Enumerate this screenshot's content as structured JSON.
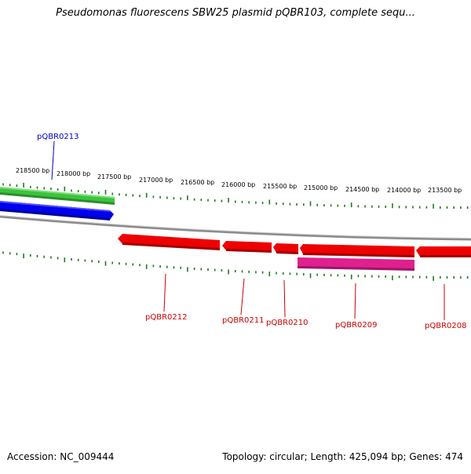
{
  "header": {
    "title": "Pseudomonas fluorescens SBW25 plasmid pQBR103, complete sequ..."
  },
  "footer": {
    "accession": "Accession: NC_009444",
    "summary": "Topology: circular; Length: 425,094 bp; Genes: 474"
  },
  "scale": {
    "tick_labels": [
      "218500 bp",
      "218000 bp",
      "217500 bp",
      "217000 bp",
      "216500 bp",
      "216000 bp",
      "215500 bp",
      "215000 bp",
      "214500 bp",
      "214000 bp",
      "213500 bp"
    ]
  },
  "genes": {
    "top_label": "pQBR0213",
    "bottom_labels": [
      "pQBR0212",
      "pQBR0211",
      "pQBR0210",
      "pQBR0209",
      "pQBR0208"
    ]
  },
  "colors": {
    "plus_strand_green": "#3cc43c",
    "plus_strand_blue": "#0000ee",
    "minus_strand_red": "#ee0000",
    "minus_strand_magenta": "#e0208e",
    "backbone_gray": "#8c8c8c",
    "tick_green": "#1f7a1f",
    "top_label_color": "#0000cc",
    "bottom_label_color": "#cc0000"
  }
}
